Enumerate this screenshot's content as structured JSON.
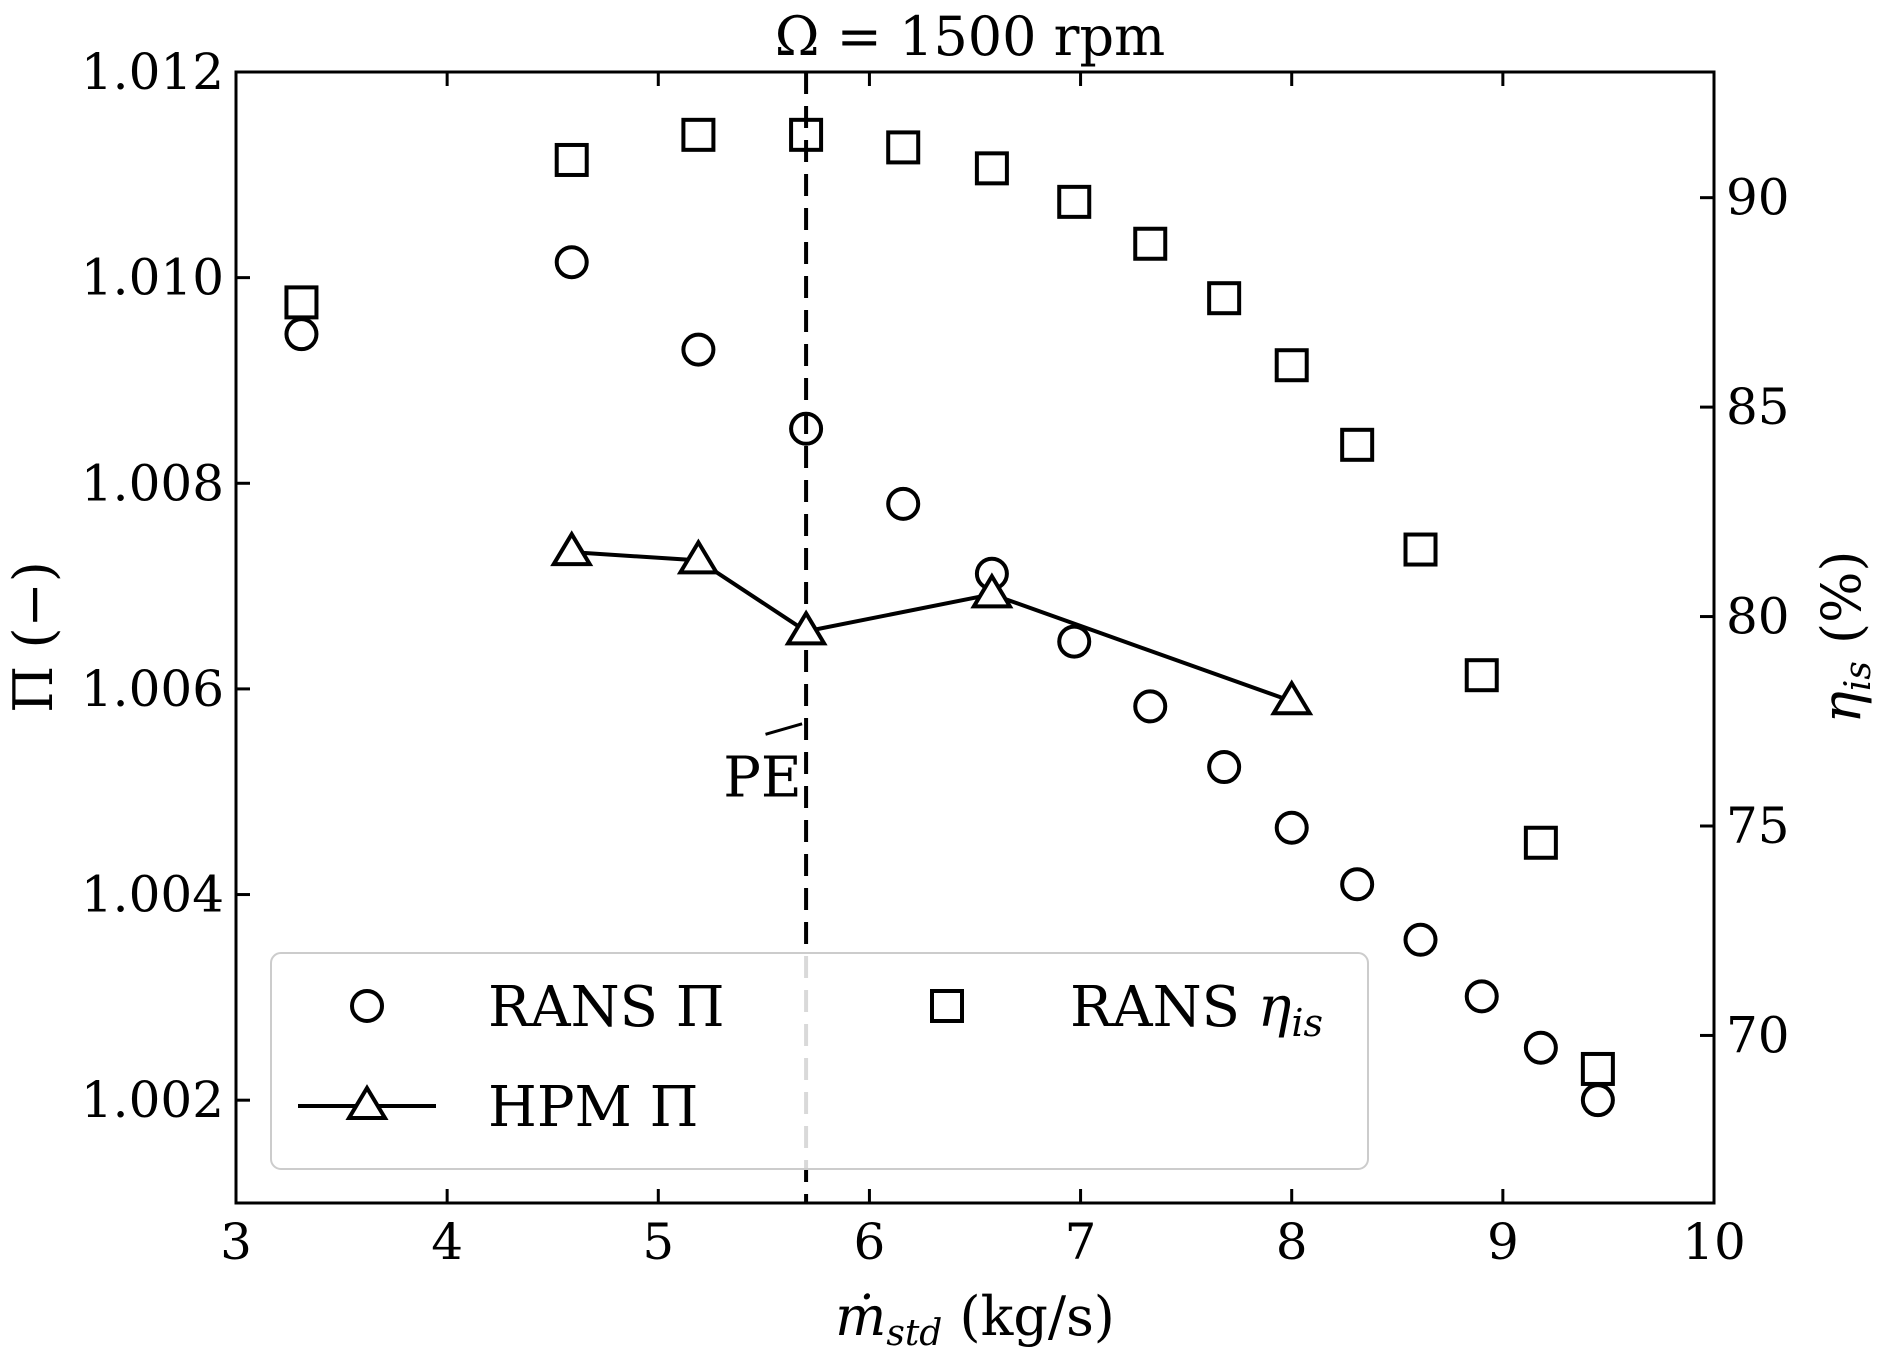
{
  "chart_data": {
    "type": "scatter",
    "title": "Ω = 1500 rpm",
    "xlabel": {
      "base": "ṁ",
      "sub": "std",
      "unit": " (kg/s)"
    },
    "ylabel_left": "Π (−)",
    "ylabel_right": {
      "base": "η",
      "sub": "is",
      "unit": " (%)"
    },
    "xlim": [
      3,
      10
    ],
    "ylim_left": [
      1.001,
      1.012
    ],
    "ylim_right": [
      66,
      93
    ],
    "xticks": [
      "3",
      "4",
      "5",
      "6",
      "7",
      "8",
      "9",
      "10"
    ],
    "xtick_values": [
      3,
      4,
      5,
      6,
      7,
      8,
      9,
      10
    ],
    "yticks_left": [
      "1.002",
      "1.004",
      "1.006",
      "1.008",
      "1.010",
      "1.012"
    ],
    "ytick_values_left": [
      1.002,
      1.004,
      1.006,
      1.008,
      1.01,
      1.012
    ],
    "yticks_right": [
      "70",
      "75",
      "80",
      "85",
      "90"
    ],
    "ytick_values_right": [
      70,
      75,
      80,
      85,
      90
    ],
    "grid": false,
    "legend_position": "bottom-left",
    "series": [
      {
        "name": "RANS Π",
        "legend_label": "RANS Π",
        "axis": "left",
        "marker": "circle",
        "line": false,
        "x": [
          3.31,
          4.59,
          5.19,
          5.7,
          6.16,
          6.58,
          6.97,
          7.33,
          7.68,
          8.0,
          8.31,
          8.61,
          8.9,
          9.18,
          9.45
        ],
        "y": [
          1.00945,
          1.01015,
          1.0093,
          1.00853,
          1.0078,
          1.00712,
          1.00646,
          1.00583,
          1.00524,
          1.00465,
          1.0041,
          1.00356,
          1.00301,
          1.00251,
          1.002
        ]
      },
      {
        "name": "RANS η_is",
        "legend_label": "RANS ",
        "legend_sym": "η",
        "legend_sub": "is",
        "axis": "right",
        "marker": "square",
        "line": false,
        "x": [
          3.31,
          4.59,
          5.19,
          5.7,
          6.16,
          6.58,
          6.97,
          7.33,
          7.68,
          8.0,
          8.31,
          8.61,
          8.9,
          9.18,
          9.45
        ],
        "y": [
          87.5,
          90.9,
          91.5,
          91.5,
          91.2,
          90.7,
          89.9,
          88.9,
          87.6,
          86.0,
          84.1,
          81.6,
          78.6,
          74.6,
          69.2
        ]
      },
      {
        "name": "HPM Π",
        "legend_label": "HPM Π",
        "axis": "left",
        "marker": "triangle",
        "line": true,
        "x": [
          4.59,
          5.19,
          5.7,
          6.58,
          8.0
        ],
        "y": [
          1.00733,
          1.00725,
          1.00656,
          1.00692,
          1.00588
        ]
      }
    ],
    "vline": {
      "x": 5.7,
      "style": "dashed"
    },
    "annotations": [
      {
        "text": "PE",
        "x": 5.47,
        "y": 1.00515,
        "points_to": {
          "x": 5.7,
          "y": 1.00566
        }
      }
    ]
  }
}
